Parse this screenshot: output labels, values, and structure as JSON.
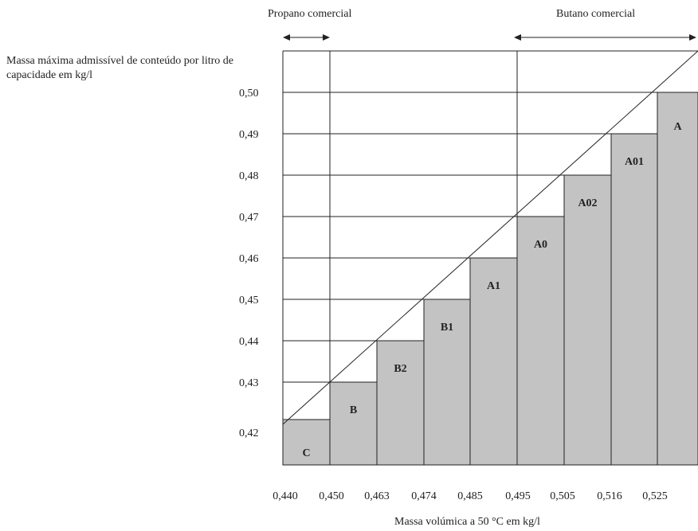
{
  "chart_data": {
    "type": "bar",
    "ylabel": "Massa máxima admissível de conteúdo por litro de capacidade em kg/l",
    "xlabel": "Massa volúmica a 50 °C em kg/l",
    "annotations": {
      "propane": "Propano comercial",
      "butane": "Butano comercial"
    },
    "x_ticks": [
      "0,440",
      "0,450",
      "0,463",
      "0,474",
      "0,485",
      "0,495",
      "0,505",
      "0,516",
      "0,525"
    ],
    "y_ticks": [
      "0,42",
      "0,43",
      "0,44",
      "0,45",
      "0,46",
      "0,47",
      "0,48",
      "0,49",
      "0,50"
    ],
    "categories": [
      "C",
      "B",
      "B2",
      "B1",
      "A1",
      "A0",
      "A02",
      "A01",
      "A"
    ],
    "values": [
      0.421,
      0.43,
      0.44,
      0.45,
      0.46,
      0.47,
      0.48,
      0.49,
      0.5
    ],
    "ylim": [
      0.415,
      0.51
    ],
    "bar_color": "#c3c3c3"
  }
}
